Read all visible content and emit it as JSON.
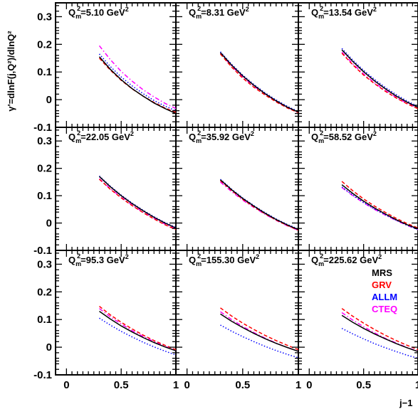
{
  "chart_data": {
    "type": "line",
    "layout": "3x3 grid of panels, shared axes",
    "xlabel": "j−1",
    "ylabel": "γ'=dlnF(j,Q²)/dlnQ²",
    "xlim": [
      -0.1,
      1.0
    ],
    "ylim": [
      -0.1,
      0.35
    ],
    "x_ticks": [
      "0",
      "0.5",
      "1"
    ],
    "y_ticks": [
      "-0.1",
      "0",
      "0.1",
      "0.2",
      "0.3"
    ],
    "x": [
      0.3,
      0.4,
      0.5,
      0.6,
      0.7,
      0.8,
      0.9,
      1.0
    ],
    "legend": {
      "panel": 6,
      "entries": [
        {
          "name": "MRS",
          "color": "#000000",
          "dash": "solid"
        },
        {
          "name": "GRV",
          "color": "#ff0000",
          "dash": "dashed"
        },
        {
          "name": "ALLM",
          "color": "#0000ff",
          "dash": "dotted"
        },
        {
          "name": "CTEQ",
          "color": "#ff00ff",
          "dash": "dashdot"
        }
      ]
    },
    "panels": [
      {
        "label": "Qm²=5.10 GeV²",
        "series": {
          "MRS": [
            0.155,
            0.11,
            0.072,
            0.04,
            0.013,
            -0.012,
            -0.032,
            -0.05
          ],
          "GRV": [
            0.15,
            0.107,
            0.07,
            0.039,
            0.013,
            -0.01,
            -0.03,
            -0.046
          ],
          "ALLM": [
            0.165,
            0.12,
            0.082,
            0.05,
            0.022,
            -0.003,
            -0.023,
            -0.04
          ],
          "CTEQ": [
            0.195,
            0.145,
            0.102,
            0.067,
            0.036,
            0.01,
            -0.013,
            -0.032
          ]
        }
      },
      {
        "label": "Qm²=8.31 GeV²",
        "series": {
          "MRS": [
            0.17,
            0.125,
            0.086,
            0.052,
            0.022,
            -0.004,
            -0.027,
            -0.045
          ],
          "GRV": [
            0.165,
            0.118,
            0.078,
            0.045,
            0.017,
            -0.008,
            -0.03,
            -0.047
          ],
          "ALLM": [
            0.173,
            0.128,
            0.089,
            0.055,
            0.025,
            -0.001,
            -0.024,
            -0.043
          ],
          "CTEQ": [
            0.168,
            0.122,
            0.082,
            0.049,
            0.02,
            -0.006,
            -0.028,
            -0.046
          ]
        }
      },
      {
        "label": "Qm²=13.54 GeV²",
        "series": {
          "MRS": [
            0.18,
            0.138,
            0.101,
            0.068,
            0.039,
            0.013,
            -0.009,
            -0.028
          ],
          "GRV": [
            0.168,
            0.126,
            0.089,
            0.058,
            0.03,
            0.006,
            -0.015,
            -0.033
          ],
          "ALLM": [
            0.185,
            0.143,
            0.106,
            0.073,
            0.044,
            0.018,
            -0.005,
            -0.025
          ],
          "CTEQ": [
            0.172,
            0.13,
            0.093,
            0.061,
            0.033,
            0.008,
            -0.013,
            -0.031
          ]
        }
      },
      {
        "label": "Qm²=22.05 GeV²",
        "series": {
          "MRS": [
            0.17,
            0.133,
            0.1,
            0.071,
            0.045,
            0.021,
            0.0,
            -0.018
          ],
          "GRV": [
            0.16,
            0.124,
            0.092,
            0.064,
            0.038,
            0.015,
            -0.006,
            -0.024
          ],
          "ALLM": [
            0.172,
            0.135,
            0.102,
            0.073,
            0.047,
            0.023,
            0.002,
            -0.016
          ],
          "CTEQ": [
            0.162,
            0.126,
            0.094,
            0.066,
            0.04,
            0.017,
            -0.004,
            -0.022
          ]
        }
      },
      {
        "label": "Qm²=35.92 GeV²",
        "series": {
          "MRS": [
            0.158,
            0.122,
            0.09,
            0.062,
            0.036,
            0.013,
            -0.007,
            -0.024
          ],
          "GRV": [
            0.155,
            0.119,
            0.087,
            0.059,
            0.034,
            0.011,
            -0.009,
            -0.026
          ],
          "ALLM": [
            0.16,
            0.124,
            0.092,
            0.064,
            0.038,
            0.015,
            -0.005,
            -0.022
          ],
          "CTEQ": [
            0.15,
            0.115,
            0.084,
            0.057,
            0.032,
            0.01,
            -0.01,
            -0.027
          ]
        }
      },
      {
        "label": "Qm²=58.52 GeV²",
        "series": {
          "MRS": [
            0.14,
            0.108,
            0.08,
            0.055,
            0.033,
            0.012,
            -0.006,
            -0.021
          ],
          "GRV": [
            0.152,
            0.118,
            0.088,
            0.062,
            0.039,
            0.017,
            -0.002,
            -0.018
          ],
          "ALLM": [
            0.132,
            0.102,
            0.075,
            0.051,
            0.03,
            0.01,
            -0.008,
            -0.024
          ],
          "CTEQ": [
            0.13,
            0.1,
            0.074,
            0.05,
            0.029,
            0.009,
            -0.009,
            -0.024
          ]
        }
      },
      {
        "label": "Qm²=95.3 GeV²",
        "series": {
          "MRS": [
            0.13,
            0.102,
            0.077,
            0.055,
            0.035,
            0.017,
            0.001,
            -0.013
          ],
          "GRV": [
            0.148,
            0.117,
            0.09,
            0.066,
            0.044,
            0.024,
            0.007,
            -0.009
          ],
          "ALLM": [
            0.105,
            0.08,
            0.057,
            0.037,
            0.018,
            0.001,
            -0.014,
            -0.028
          ],
          "CTEQ": [
            0.14,
            0.11,
            0.084,
            0.06,
            0.039,
            0.02,
            0.003,
            -0.012
          ]
        }
      },
      {
        "label": "Qm²=155.30 GeV²",
        "series": {
          "MRS": [
            0.12,
            0.094,
            0.071,
            0.05,
            0.031,
            0.014,
            -0.001,
            -0.015
          ],
          "GRV": [
            0.142,
            0.113,
            0.087,
            0.064,
            0.043,
            0.024,
            0.007,
            -0.009
          ],
          "ALLM": [
            0.08,
            0.058,
            0.038,
            0.02,
            0.003,
            -0.012,
            -0.026,
            -0.038
          ],
          "CTEQ": [
            0.128,
            0.1,
            0.075,
            0.053,
            0.033,
            0.015,
            -0.001,
            -0.015
          ]
        }
      },
      {
        "label": "Qm²=225.62 GeV²",
        "series": {
          "MRS": [
            0.115,
            0.09,
            0.068,
            0.048,
            0.03,
            0.013,
            -0.002,
            -0.016
          ],
          "GRV": [
            0.14,
            0.112,
            0.087,
            0.064,
            0.043,
            0.024,
            0.007,
            -0.009
          ],
          "ALLM": [
            0.068,
            0.048,
            0.03,
            0.013,
            -0.002,
            -0.016,
            -0.029,
            -0.04
          ],
          "CTEQ": [
            0.125,
            0.098,
            0.074,
            0.052,
            0.032,
            0.015,
            -0.001,
            -0.015
          ]
        }
      }
    ]
  }
}
